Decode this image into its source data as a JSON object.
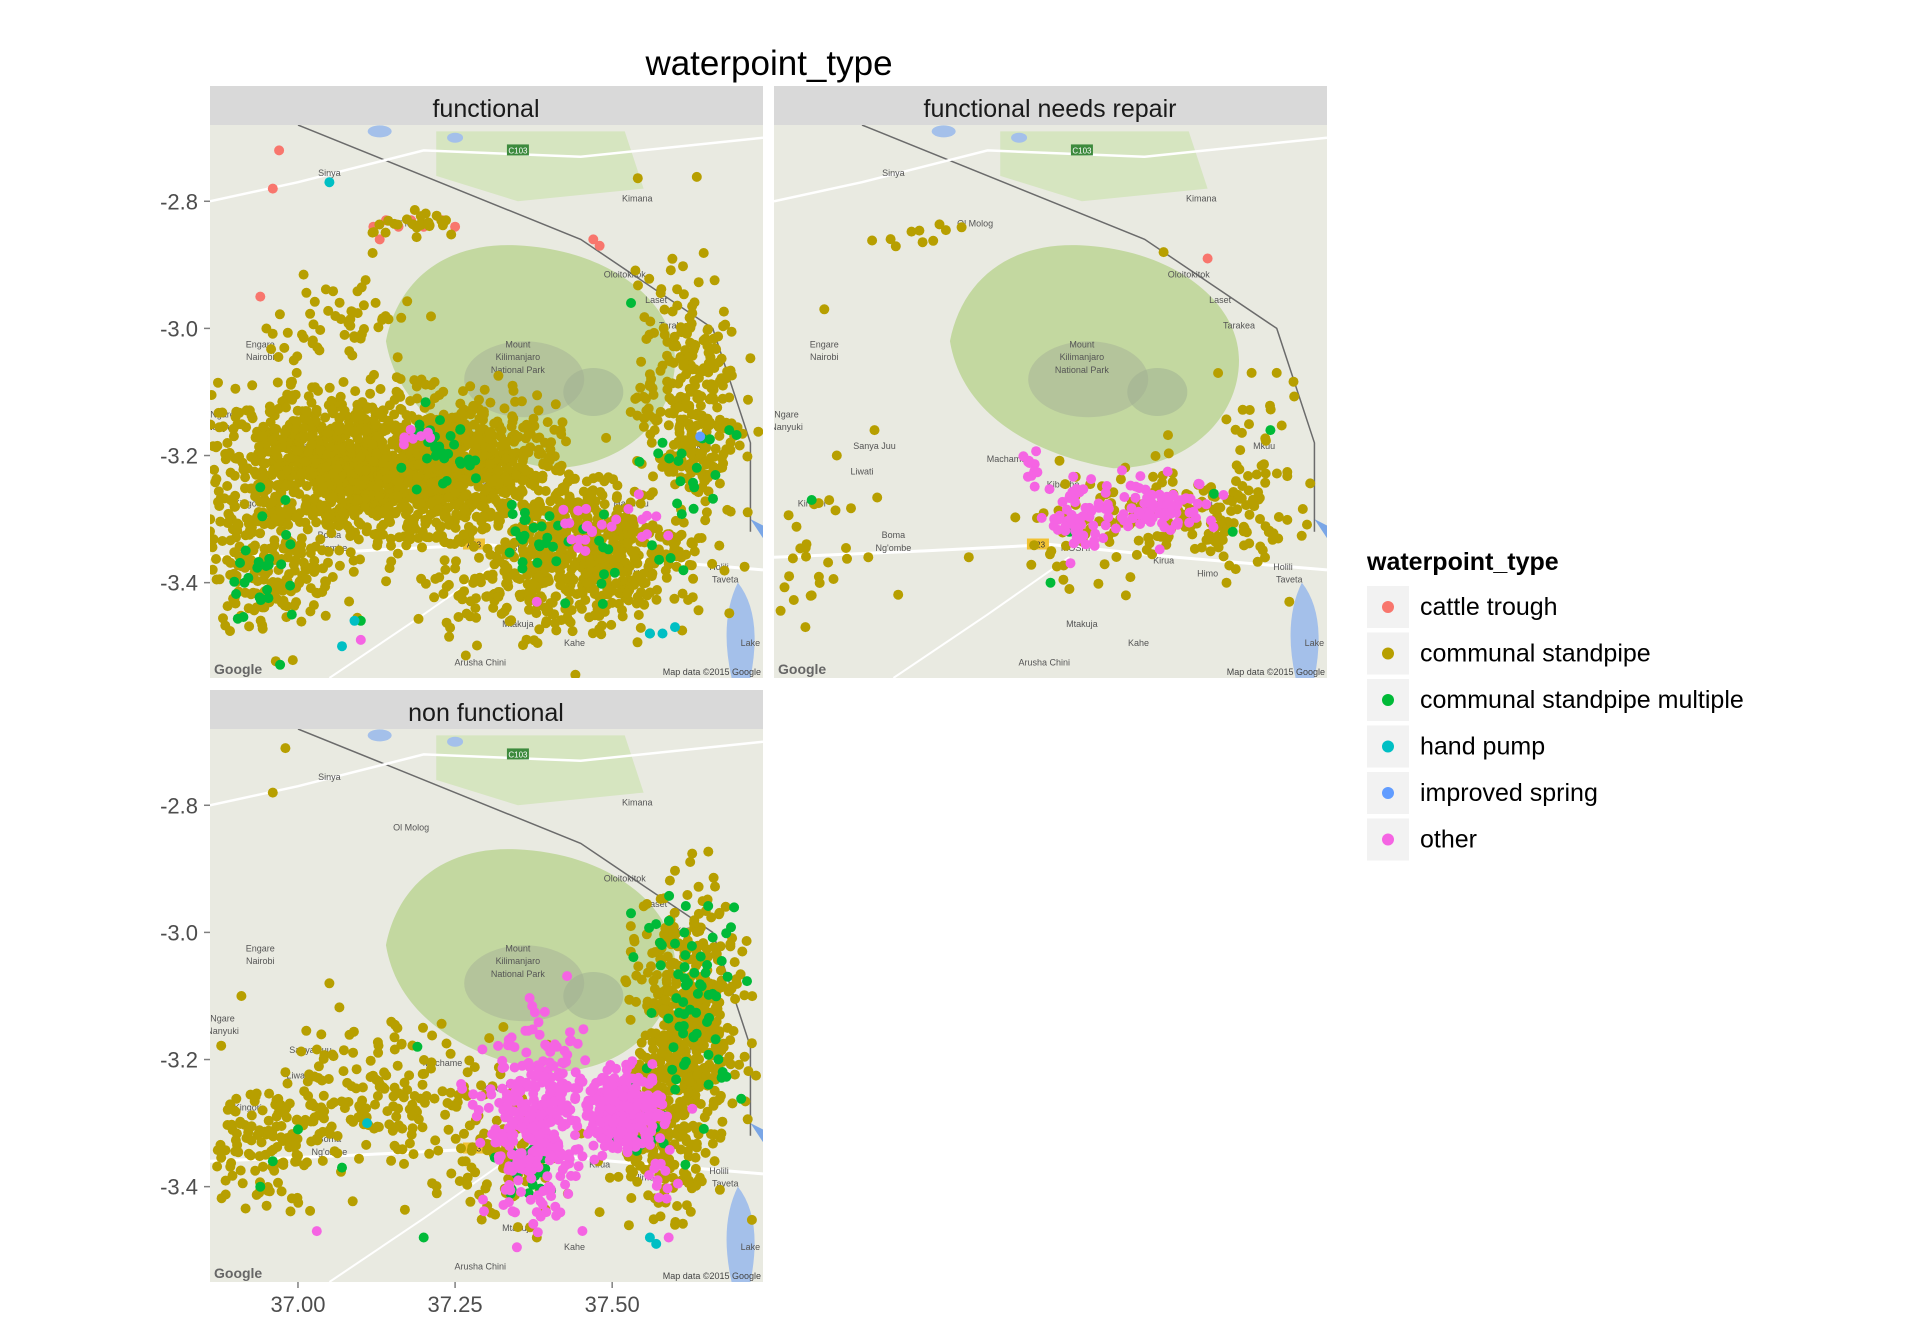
{
  "chart_data": {
    "type": "scatter",
    "title": "waterpoint_type",
    "facet_titles": [
      "functional",
      "functional needs repair",
      "non functional"
    ],
    "x_ticks": [
      "37.00",
      "37.25",
      "37.50"
    ],
    "y_ticks": [
      "-2.8",
      "-3.0",
      "-3.2",
      "-3.4"
    ],
    "xlim": [
      36.86,
      37.74
    ],
    "ylim": [
      -3.55,
      -2.68
    ],
    "legend": {
      "title": "waterpoint_type",
      "placement": "right",
      "entries": [
        {
          "label": "cattle trough",
          "color": "#F8766D"
        },
        {
          "label": "communal standpipe",
          "color": "#B79F00"
        },
        {
          "label": "communal standpipe multiple",
          "color": "#00BA38"
        },
        {
          "label": "hand pump",
          "color": "#00BFC4"
        },
        {
          "label": "improved spring",
          "color": "#619CFF"
        },
        {
          "label": "other",
          "color": "#F564E3"
        }
      ]
    },
    "map_labels": {
      "attribution": "Map data ©2015 Google",
      "logo": "Google",
      "road_labels": [
        "C103",
        "A23"
      ],
      "places": [
        {
          "name": "Sinya",
          "lon": 37.05,
          "lat": -2.76
        },
        {
          "name": "Kimana",
          "lon": 37.54,
          "lat": -2.8
        },
        {
          "name": "Ol Molog",
          "lon": 37.18,
          "lat": -2.84
        },
        {
          "name": "Oloitokitok",
          "lon": 37.52,
          "lat": -2.92
        },
        {
          "name": "Laset",
          "lon": 37.57,
          "lat": -2.96
        },
        {
          "name": "Tarakea",
          "lon": 37.6,
          "lat": -3.0
        },
        {
          "name": "Engare",
          "lon": 36.94,
          "lat": -3.03
        },
        {
          "name": "Nairobi",
          "lon": 36.94,
          "lat": -3.05
        },
        {
          "name": "Mount",
          "lon": 37.35,
          "lat": -3.03
        },
        {
          "name": "Kilimanjaro",
          "lon": 37.35,
          "lat": -3.05
        },
        {
          "name": "National Park",
          "lon": 37.35,
          "lat": -3.07
        },
        {
          "name": "Ngare",
          "lon": 36.88,
          "lat": -3.14
        },
        {
          "name": "Nanyuki",
          "lon": 36.88,
          "lat": -3.16
        },
        {
          "name": "Mkuu",
          "lon": 37.64,
          "lat": -3.19
        },
        {
          "name": "Sanya Juu",
          "lon": 37.02,
          "lat": -3.19
        },
        {
          "name": "Machame",
          "lon": 37.23,
          "lat": -3.21
        },
        {
          "name": "Liwati",
          "lon": 37.0,
          "lat": -3.23
        },
        {
          "name": "Kibosho",
          "lon": 37.32,
          "lat": -3.25
        },
        {
          "name": "Marangu",
          "lon": 37.53,
          "lat": -3.28
        },
        {
          "name": "Kingori",
          "lon": 36.92,
          "lat": -3.28
        },
        {
          "name": "Boma",
          "lon": 37.05,
          "lat": -3.33
        },
        {
          "name": "Ng'ombe",
          "lon": 37.05,
          "lat": -3.35
        },
        {
          "name": "MOSHI",
          "lon": 37.34,
          "lat": -3.35
        },
        {
          "name": "Kirua",
          "lon": 37.48,
          "lat": -3.37
        },
        {
          "name": "Holili",
          "lon": 37.67,
          "lat": -3.38
        },
        {
          "name": "Himo",
          "lon": 37.55,
          "lat": -3.39
        },
        {
          "name": "Taveta",
          "lon": 37.68,
          "lat": -3.4
        },
        {
          "name": "Mtakuja",
          "lon": 37.35,
          "lat": -3.47
        },
        {
          "name": "Kahe",
          "lon": 37.44,
          "lat": -3.5
        },
        {
          "name": "Arusha Chini",
          "lon": 37.29,
          "lat": -3.53
        },
        {
          "name": "Lake",
          "lon": 37.72,
          "lat": -3.5
        }
      ]
    },
    "series": [
      {
        "name": "cattle trough",
        "color": "#F8766D",
        "points": [
          {
            "facet": 0,
            "lon": 36.97,
            "lat": -2.72
          },
          {
            "facet": 0,
            "lon": 36.96,
            "lat": -2.78
          },
          {
            "facet": 0,
            "lon": 37.12,
            "lat": -2.84
          },
          {
            "facet": 0,
            "lon": 37.14,
            "lat": -2.83
          },
          {
            "facet": 0,
            "lon": 37.16,
            "lat": -2.84
          },
          {
            "facet": 0,
            "lon": 37.18,
            "lat": -2.83
          },
          {
            "facet": 0,
            "lon": 37.2,
            "lat": -2.84
          },
          {
            "facet": 0,
            "lon": 37.23,
            "lat": -2.83
          },
          {
            "facet": 0,
            "lon": 37.25,
            "lat": -2.84
          },
          {
            "facet": 0,
            "lon": 37.13,
            "lat": -2.86
          },
          {
            "facet": 0,
            "lon": 37.48,
            "lat": -2.87
          },
          {
            "facet": 0,
            "lon": 37.47,
            "lat": -2.86
          },
          {
            "facet": 0,
            "lon": 36.94,
            "lat": -2.95
          },
          {
            "facet": 0,
            "lon": 37.29,
            "lat": -3.22
          },
          {
            "facet": 1,
            "lon": 37.55,
            "lat": -2.89
          }
        ]
      },
      {
        "name": "communal standpipe",
        "color": "#B79F00",
        "clusters": [
          {
            "facet": 0,
            "lon": 37.08,
            "lat": -3.22,
            "slon": 0.13,
            "slat": 0.06,
            "n": 1100
          },
          {
            "facet": 0,
            "lon": 37.25,
            "lat": -3.22,
            "slon": 0.08,
            "slat": 0.05,
            "n": 550
          },
          {
            "facet": 0,
            "lon": 37.46,
            "lat": -3.34,
            "slon": 0.08,
            "slat": 0.05,
            "n": 450
          },
          {
            "facet": 0,
            "lon": 37.62,
            "lat": -3.12,
            "slon": 0.04,
            "slat": 0.1,
            "n": 300
          },
          {
            "facet": 0,
            "lon": 36.96,
            "lat": -3.37,
            "slon": 0.05,
            "slat": 0.05,
            "n": 180
          },
          {
            "facet": 0,
            "lon": 37.38,
            "lat": -3.42,
            "slon": 0.1,
            "slat": 0.04,
            "n": 160
          },
          {
            "facet": 0,
            "lon": 37.07,
            "lat": -2.99,
            "slon": 0.06,
            "slat": 0.04,
            "n": 60
          },
          {
            "facet": 0,
            "lon": 37.2,
            "lat": -2.84,
            "slon": 0.04,
            "slat": 0.01,
            "n": 25
          },
          {
            "facet": 1,
            "lon": 37.52,
            "lat": -3.3,
            "slon": 0.08,
            "slat": 0.04,
            "n": 130
          },
          {
            "facet": 1,
            "lon": 37.62,
            "lat": -3.22,
            "slon": 0.05,
            "slat": 0.07,
            "n": 50
          },
          {
            "facet": 1,
            "lon": 37.34,
            "lat": -3.31,
            "slon": 0.05,
            "slat": 0.04,
            "n": 40
          },
          {
            "facet": 1,
            "lon": 36.93,
            "lat": -3.35,
            "slon": 0.04,
            "slat": 0.04,
            "n": 25
          },
          {
            "facet": 1,
            "lon": 37.1,
            "lat": -2.86,
            "slon": 0.03,
            "slat": 0.01,
            "n": 10
          },
          {
            "facet": 2,
            "lon": 37.62,
            "lat": -3.15,
            "slon": 0.04,
            "slat": 0.1,
            "n": 500
          },
          {
            "facet": 2,
            "lon": 37.58,
            "lat": -3.32,
            "slon": 0.04,
            "slat": 0.06,
            "n": 150
          },
          {
            "facet": 2,
            "lon": 37.15,
            "lat": -3.26,
            "slon": 0.1,
            "slat": 0.06,
            "n": 200
          },
          {
            "facet": 2,
            "lon": 36.94,
            "lat": -3.33,
            "slon": 0.05,
            "slat": 0.05,
            "n": 120
          },
          {
            "facet": 2,
            "lon": 37.33,
            "lat": -3.37,
            "slon": 0.05,
            "slat": 0.04,
            "n": 80
          }
        ],
        "points": [
          {
            "facet": 1,
            "lon": 36.94,
            "lat": -2.97
          },
          {
            "facet": 1,
            "lon": 37.48,
            "lat": -2.88
          },
          {
            "facet": 1,
            "lon": 37.62,
            "lat": -3.07
          },
          {
            "facet": 1,
            "lon": 37.66,
            "lat": -3.07
          },
          {
            "facet": 1,
            "lon": 36.92,
            "lat": -3.42
          },
          {
            "facet": 1,
            "lon": 36.91,
            "lat": -3.47
          },
          {
            "facet": 1,
            "lon": 37.42,
            "lat": -3.42
          },
          {
            "facet": 1,
            "lon": 37.33,
            "lat": -3.41
          },
          {
            "facet": 1,
            "lon": 37.01,
            "lat": -3.36
          },
          {
            "facet": 1,
            "lon": 37.17,
            "lat": -3.36
          },
          {
            "facet": 1,
            "lon": 37.68,
            "lat": -3.43
          },
          {
            "facet": 1,
            "lon": 37.58,
            "lat": -3.4
          },
          {
            "facet": 1,
            "lon": 36.96,
            "lat": -3.2
          },
          {
            "facet": 1,
            "lon": 37.02,
            "lat": -3.16
          },
          {
            "facet": 2,
            "lon": 36.96,
            "lat": -2.78
          },
          {
            "facet": 2,
            "lon": 36.98,
            "lat": -2.71
          },
          {
            "facet": 2,
            "lon": 37.05,
            "lat": -3.08
          },
          {
            "facet": 2,
            "lon": 36.91,
            "lat": -3.1
          },
          {
            "facet": 2,
            "lon": 36.95,
            "lat": -3.43
          },
          {
            "facet": 2,
            "lon": 37.23,
            "lat": -3.25
          },
          {
            "facet": 2,
            "lon": 37.27,
            "lat": -3.22
          },
          {
            "facet": 2,
            "lon": 37.48,
            "lat": -3.44
          },
          {
            "facet": 2,
            "lon": 37.6,
            "lat": -3.46
          },
          {
            "facet": 2,
            "lon": 37.38,
            "lat": -3.48
          }
        ]
      },
      {
        "name": "communal standpipe multiple",
        "color": "#00BA38",
        "clusters": [
          {
            "facet": 0,
            "lon": 37.22,
            "lat": -3.2,
            "slon": 0.03,
            "slat": 0.03,
            "n": 30
          },
          {
            "facet": 0,
            "lon": 37.37,
            "lat": -3.33,
            "slon": 0.03,
            "slat": 0.02,
            "n": 25
          },
          {
            "facet": 0,
            "lon": 36.94,
            "lat": -3.4,
            "slon": 0.03,
            "slat": 0.05,
            "n": 25
          },
          {
            "facet": 0,
            "lon": 37.63,
            "lat": -3.23,
            "slon": 0.04,
            "slat": 0.08,
            "n": 20
          },
          {
            "facet": 0,
            "lon": 37.49,
            "lat": -3.36,
            "slon": 0.04,
            "slat": 0.03,
            "n": 12
          },
          {
            "facet": 2,
            "lon": 37.63,
            "lat": -3.1,
            "slon": 0.04,
            "slat": 0.08,
            "n": 70
          },
          {
            "facet": 2,
            "lon": 37.37,
            "lat": -3.38,
            "slon": 0.03,
            "slat": 0.03,
            "n": 25
          },
          {
            "facet": 2,
            "lon": 37.55,
            "lat": -3.31,
            "slon": 0.03,
            "slat": 0.03,
            "n": 20
          }
        ],
        "points": [
          {
            "facet": 0,
            "lon": 37.53,
            "lat": -2.96
          },
          {
            "facet": 0,
            "lon": 36.94,
            "lat": -3.25
          },
          {
            "facet": 0,
            "lon": 37.1,
            "lat": -3.46
          },
          {
            "facet": 0,
            "lon": 37.56,
            "lat": -3.48
          },
          {
            "facet": 0,
            "lon": 37.58,
            "lat": -3.18
          },
          {
            "facet": 0,
            "lon": 36.98,
            "lat": -3.27
          },
          {
            "facet": 1,
            "lon": 37.65,
            "lat": -3.16
          },
          {
            "facet": 1,
            "lon": 37.56,
            "lat": -3.26
          },
          {
            "facet": 1,
            "lon": 36.92,
            "lat": -3.27
          },
          {
            "facet": 1,
            "lon": 37.3,
            "lat": -3.4
          },
          {
            "facet": 1,
            "lon": 37.33,
            "lat": -3.32
          },
          {
            "facet": 1,
            "lon": 37.59,
            "lat": -3.32
          },
          {
            "facet": 2,
            "lon": 37.53,
            "lat": -2.97
          },
          {
            "facet": 2,
            "lon": 37.19,
            "lat": -3.18
          },
          {
            "facet": 2,
            "lon": 37.2,
            "lat": -3.48
          },
          {
            "facet": 2,
            "lon": 37.07,
            "lat": -3.37
          },
          {
            "facet": 2,
            "lon": 36.96,
            "lat": -3.36
          },
          {
            "facet": 2,
            "lon": 36.94,
            "lat": -3.4
          },
          {
            "facet": 2,
            "lon": 37.0,
            "lat": -3.31
          }
        ]
      },
      {
        "name": "hand pump",
        "color": "#00BFC4",
        "points": [
          {
            "facet": 0,
            "lon": 37.05,
            "lat": -2.77
          },
          {
            "facet": 0,
            "lon": 37.09,
            "lat": -3.46
          },
          {
            "facet": 0,
            "lon": 37.07,
            "lat": -3.5
          },
          {
            "facet": 0,
            "lon": 37.56,
            "lat": -3.48
          },
          {
            "facet": 0,
            "lon": 37.58,
            "lat": -3.48
          },
          {
            "facet": 0,
            "lon": 37.6,
            "lat": -3.47
          },
          {
            "facet": 2,
            "lon": 37.11,
            "lat": -3.3
          },
          {
            "facet": 2,
            "lon": 37.56,
            "lat": -3.48
          },
          {
            "facet": 2,
            "lon": 37.57,
            "lat": -3.49
          }
        ]
      },
      {
        "name": "improved spring",
        "color": "#619CFF",
        "points": [
          {
            "facet": 0,
            "lon": 37.64,
            "lat": -3.17
          }
        ]
      },
      {
        "name": "other",
        "color": "#F564E3",
        "clusters": [
          {
            "facet": 0,
            "lon": 37.45,
            "lat": -3.31,
            "slon": 0.02,
            "slat": 0.02,
            "n": 15
          },
          {
            "facet": 0,
            "lon": 37.55,
            "lat": -3.29,
            "slon": 0.02,
            "slat": 0.02,
            "n": 10
          },
          {
            "facet": 0,
            "lon": 37.18,
            "lat": -3.17,
            "slon": 0.02,
            "slat": 0.01,
            "n": 8
          },
          {
            "facet": 1,
            "lon": 37.47,
            "lat": -3.28,
            "slon": 0.05,
            "slat": 0.02,
            "n": 90
          },
          {
            "facet": 1,
            "lon": 37.34,
            "lat": -3.3,
            "slon": 0.02,
            "slat": 0.03,
            "n": 50
          },
          {
            "facet": 1,
            "lon": 37.27,
            "lat": -3.22,
            "slon": 0.01,
            "slat": 0.02,
            "n": 12
          },
          {
            "facet": 2,
            "lon": 37.38,
            "lat": -3.3,
            "slon": 0.04,
            "slat": 0.07,
            "n": 350
          },
          {
            "facet": 2,
            "lon": 37.52,
            "lat": -3.28,
            "slon": 0.03,
            "slat": 0.03,
            "n": 280
          },
          {
            "facet": 2,
            "lon": 37.58,
            "lat": -3.39,
            "slon": 0.01,
            "slat": 0.02,
            "n": 12
          }
        ],
        "points": [
          {
            "facet": 0,
            "lon": 37.38,
            "lat": -3.43
          },
          {
            "facet": 0,
            "lon": 37.1,
            "lat": -3.49
          },
          {
            "facet": 2,
            "lon": 37.03,
            "lat": -3.47
          },
          {
            "facet": 2,
            "lon": 37.38,
            "lat": -3.44
          },
          {
            "facet": 2,
            "lon": 37.59,
            "lat": -3.48
          }
        ]
      }
    ]
  }
}
